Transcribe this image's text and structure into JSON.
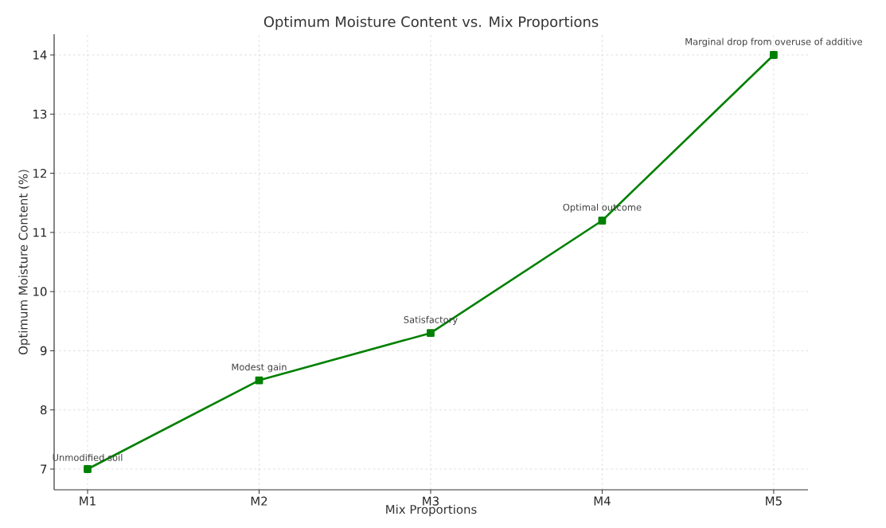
{
  "chart_data": {
    "type": "line",
    "title": "Optimum Moisture Content vs. Mix Proportions",
    "xlabel": "Mix Proportions",
    "ylabel": "Optimum Moisture Content (%)",
    "categories": [
      "M1",
      "M2",
      "M3",
      "M4",
      "M5"
    ],
    "values": [
      7,
      8.5,
      9.3,
      11.2,
      14
    ],
    "color": "#008000",
    "marker": "square",
    "line_style": "solid",
    "ylim": [
      6.65,
      14.35
    ],
    "yticks": [
      7,
      8,
      9,
      10,
      11,
      12,
      13,
      14
    ],
    "grid": true,
    "annotations": [
      {
        "text": "Unmodified soil",
        "x": "M1",
        "y": 7
      },
      {
        "text": "Modest gain",
        "x": "M2",
        "y": 8.5
      },
      {
        "text": "Satisfactory",
        "x": "M3",
        "y": 9.3
      },
      {
        "text": "Optimal outcome",
        "x": "M4",
        "y": 11.2
      },
      {
        "text": "Marginal drop from overuse of additive",
        "x": "M5",
        "y": 14
      }
    ]
  }
}
